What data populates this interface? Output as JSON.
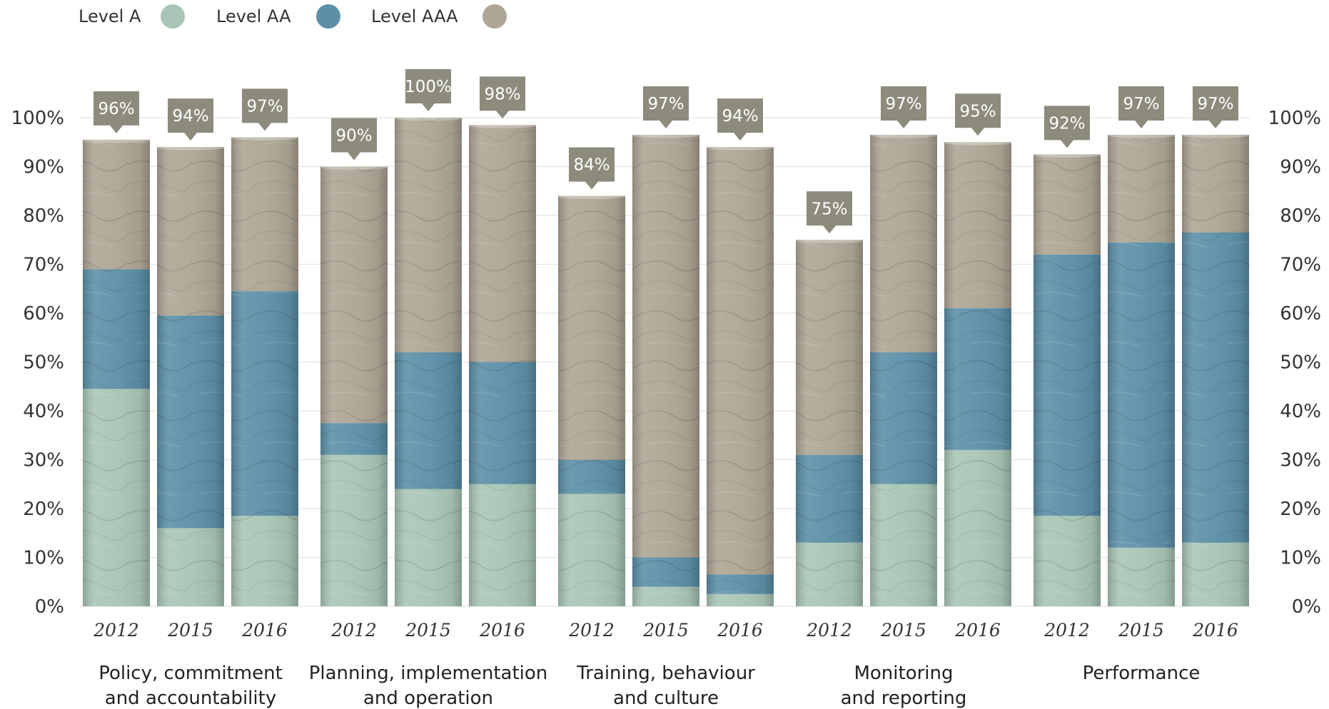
{
  "legend": [
    {
      "label": "Level  A",
      "color": "#a9c6b6"
    },
    {
      "label": "Level   AA",
      "color": "#5d90a8"
    },
    {
      "label": "Level  AAA",
      "color": "#aea695"
    }
  ],
  "chart_data": {
    "type": "bar",
    "stacked": true,
    "title": "",
    "xlabel": "",
    "ylabel": "",
    "ylim": [
      0,
      100
    ],
    "y_ticks": [
      "0%",
      "10%",
      "20%",
      "30%",
      "40%",
      "50%",
      "60%",
      "70%",
      "80%",
      "90%",
      "100%"
    ],
    "y_axis_both_sides": true,
    "grid": true,
    "legend_position": "top-left",
    "colors": {
      "Level A": "#a9c6b6",
      "Level AA": "#5d90a8",
      "Level AAA": "#aea695",
      "tag": "#8c8b7c"
    },
    "groups": [
      {
        "name": [
          "Policy, commitment",
          "and accountability"
        ],
        "bars": [
          {
            "year": "2012",
            "a": 44.5,
            "aa": 24.5,
            "aaa": 26.5,
            "label": "96%"
          },
          {
            "year": "2015",
            "a": 16,
            "aa": 43.5,
            "aaa": 34.5,
            "label": "94%"
          },
          {
            "year": "2016",
            "a": 18.5,
            "aa": 46,
            "aaa": 31.5,
            "label": "97%"
          }
        ]
      },
      {
        "name": [
          "Planning, implementation",
          "and operation"
        ],
        "bars": [
          {
            "year": "2012",
            "a": 31,
            "aa": 6.5,
            "aaa": 52.5,
            "label": "90%"
          },
          {
            "year": "2015",
            "a": 24,
            "aa": 28,
            "aaa": 48,
            "label": "100%"
          },
          {
            "year": "2016",
            "a": 25,
            "aa": 25,
            "aaa": 48.5,
            "label": "98%"
          }
        ]
      },
      {
        "name": [
          "Training, behaviour",
          "and culture"
        ],
        "bars": [
          {
            "year": "2012",
            "a": 23,
            "aa": 7,
            "aaa": 54,
            "label": "84%"
          },
          {
            "year": "2015",
            "a": 4,
            "aa": 6,
            "aaa": 86.5,
            "label": "97%"
          },
          {
            "year": "2016",
            "a": 2.5,
            "aa": 4,
            "aaa": 87.5,
            "label": "94%"
          }
        ]
      },
      {
        "name": [
          "Monitoring",
          "and reporting"
        ],
        "bars": [
          {
            "year": "2012",
            "a": 13,
            "aa": 18,
            "aaa": 44,
            "label": "75%"
          },
          {
            "year": "2015",
            "a": 25,
            "aa": 27,
            "aaa": 44.5,
            "label": "97%"
          },
          {
            "year": "2016",
            "a": 32,
            "aa": 29,
            "aaa": 34,
            "label": "95%"
          }
        ]
      },
      {
        "name": [
          "Performance"
        ],
        "bars": [
          {
            "year": "2012",
            "a": 18.5,
            "aa": 53.5,
            "aaa": 20.5,
            "label": "92%"
          },
          {
            "year": "2015",
            "a": 12,
            "aa": 62.5,
            "aaa": 22,
            "label": "97%"
          },
          {
            "year": "2016",
            "a": 13,
            "aa": 63.5,
            "aaa": 20,
            "label": "97%"
          }
        ]
      }
    ]
  }
}
